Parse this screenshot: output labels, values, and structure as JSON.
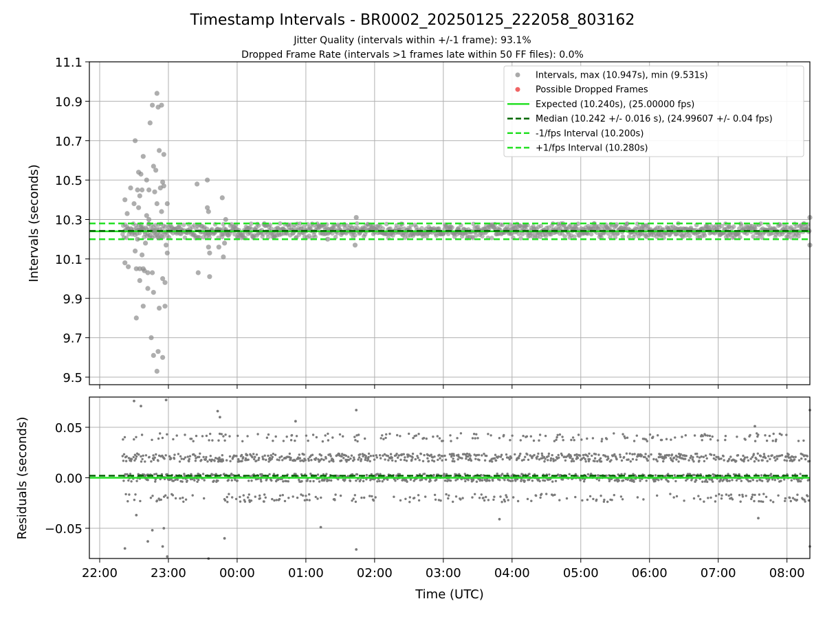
{
  "title": "Timestamp Intervals - BR0002_20250125_222058_803162",
  "subtitle_1": "Jitter Quality (intervals within +/-1 frame): 93.1%",
  "subtitle_2": "Dropped Frame Rate (intervals >1 frames late within 50 FF files): 0.0%",
  "chart_data": [
    {
      "type": "scatter",
      "panel": "intervals",
      "ylabel": "Intervals (seconds)",
      "xlabel": "",
      "ylim": [
        9.46,
        11.1
      ],
      "x_range": [
        "21:51",
        "08:20"
      ],
      "yticks": [
        9.5,
        9.7,
        9.9,
        10.1,
        10.3,
        10.5,
        10.7,
        10.9,
        11.1
      ],
      "ytick_labels": [
        "9.5",
        "9.7",
        "9.9",
        "10.1",
        "10.3",
        "10.5",
        "10.7",
        "10.9",
        "11.1"
      ],
      "grid": true,
      "legend_position": "top-right",
      "colors": {
        "intervals": "#8c8c8c",
        "dropped": "#f06464",
        "expected": "#22e022",
        "median": "#006400",
        "band": "#22e022"
      },
      "legend": [
        {
          "label": "Intervals, max (10.947s), min (9.531s)",
          "kind": "dot",
          "color": "#a9a9a9"
        },
        {
          "label": "Possible Dropped Frames",
          "kind": "dot",
          "color": "#f06464"
        },
        {
          "label": "Expected (10.240s), (25.00000 fps)",
          "kind": "solid",
          "color": "#22e022"
        },
        {
          "label": "Median (10.242 +/- 0.016 s), (24.99607 +/- 0.04 fps)",
          "kind": "dashed",
          "color": "#006400"
        },
        {
          "label": "-1/fps Interval (10.200s)",
          "kind": "dashed",
          "color": "#22e022"
        },
        {
          "label": "+1/fps Interval (10.280s)",
          "kind": "dashed",
          "color": "#22e022"
        }
      ],
      "reference_lines": {
        "expected": 10.24,
        "median": 10.242,
        "lower": 10.2,
        "upper": 10.28
      },
      "data_span": {
        "start": "22:20",
        "end": "08:20"
      },
      "outlier_points": [
        [
          "22:22",
          10.4
        ],
        [
          "22:22",
          10.08
        ],
        [
          "22:24",
          10.33
        ],
        [
          "22:25",
          10.06
        ],
        [
          "22:27",
          10.46
        ],
        [
          "22:30",
          10.38
        ],
        [
          "22:31",
          10.14
        ],
        [
          "22:31",
          10.7
        ],
        [
          "22:32",
          10.05
        ],
        [
          "22:32",
          9.8
        ],
        [
          "22:33",
          10.2
        ],
        [
          "22:33",
          10.45
        ],
        [
          "22:34",
          10.54
        ],
        [
          "22:34",
          10.36
        ],
        [
          "22:35",
          10.42
        ],
        [
          "22:35",
          10.05
        ],
        [
          "22:35",
          9.99
        ],
        [
          "22:36",
          10.26
        ],
        [
          "22:36",
          10.53
        ],
        [
          "22:37",
          10.45
        ],
        [
          "22:37",
          10.12
        ],
        [
          "22:38",
          10.62
        ],
        [
          "22:38",
          10.05
        ],
        [
          "22:38",
          9.86
        ],
        [
          "22:39",
          10.04
        ],
        [
          "22:40",
          10.18
        ],
        [
          "22:41",
          10.5
        ],
        [
          "22:41",
          10.32
        ],
        [
          "22:42",
          10.03
        ],
        [
          "22:42",
          9.95
        ],
        [
          "22:43",
          10.45
        ],
        [
          "22:43",
          10.3
        ],
        [
          "22:44",
          10.79
        ],
        [
          "22:44",
          10.22
        ],
        [
          "22:45",
          9.7
        ],
        [
          "22:46",
          10.88
        ],
        [
          "22:46",
          10.03
        ],
        [
          "22:47",
          10.57
        ],
        [
          "22:47",
          9.61
        ],
        [
          "22:47",
          9.93
        ],
        [
          "22:48",
          10.44
        ],
        [
          "22:48",
          10.24
        ],
        [
          "22:49",
          10.55
        ],
        [
          "22:50",
          10.94
        ],
        [
          "22:50",
          10.38
        ],
        [
          "22:50",
          9.53
        ],
        [
          "22:51",
          10.87
        ],
        [
          "22:51",
          10.21
        ],
        [
          "22:51",
          9.63
        ],
        [
          "22:52",
          10.65
        ],
        [
          "22:52",
          9.85
        ],
        [
          "22:53",
          10.46
        ],
        [
          "22:54",
          10.88
        ],
        [
          "22:54",
          10.34
        ],
        [
          "22:55",
          10.49
        ],
        [
          "22:55",
          10.0
        ],
        [
          "22:55",
          9.6
        ],
        [
          "22:56",
          10.63
        ],
        [
          "22:56",
          10.47
        ],
        [
          "22:57",
          9.98
        ],
        [
          "22:57",
          9.86
        ],
        [
          "22:58",
          10.17
        ],
        [
          "22:59",
          10.13
        ],
        [
          "22:59",
          10.38
        ],
        [
          "23:25",
          10.48
        ],
        [
          "23:26",
          10.03
        ],
        [
          "23:34",
          10.5
        ],
        [
          "23:34",
          10.36
        ],
        [
          "23:35",
          10.34
        ],
        [
          "23:35",
          10.16
        ],
        [
          "23:36",
          10.13
        ],
        [
          "23:36",
          10.01
        ],
        [
          "23:44",
          10.16
        ],
        [
          "23:47",
          10.41
        ],
        [
          "23:48",
          10.11
        ],
        [
          "23:49",
          10.18
        ],
        [
          "23:50",
          10.3
        ],
        [
          "01:19",
          10.2
        ],
        [
          "01:43",
          10.17
        ],
        [
          "01:44",
          10.31
        ],
        [
          "08:20",
          10.31
        ],
        [
          "08:20",
          10.17
        ]
      ]
    },
    {
      "type": "scatter",
      "panel": "residuals",
      "ylabel": "Residuals (seconds)",
      "xlabel": "Time (UTC)",
      "ylim": [
        -0.08,
        0.08
      ],
      "x_range": [
        "21:51",
        "08:20"
      ],
      "yticks": [
        -0.05,
        0.0,
        0.05
      ],
      "ytick_labels": [
        "−0.05",
        "0.00",
        "0.05"
      ],
      "xticks": [
        "22:00",
        "23:00",
        "00:00",
        "01:00",
        "02:00",
        "03:00",
        "04:00",
        "05:00",
        "06:00",
        "07:00",
        "08:00"
      ],
      "grid": true,
      "bands": [
        0.04,
        0.02,
        0.0,
        -0.02
      ],
      "reference_lines": {
        "zero": 0.0,
        "median_offset": 0.002
      },
      "outlier_points": [
        [
          "22:30",
          0.076
        ],
        [
          "22:36",
          0.071
        ],
        [
          "22:32",
          -0.037
        ],
        [
          "22:22",
          -0.07
        ],
        [
          "22:42",
          -0.063
        ],
        [
          "22:46",
          -0.052
        ],
        [
          "22:55",
          -0.068
        ],
        [
          "22:58",
          0.077
        ],
        [
          "22:59",
          -0.078
        ],
        [
          "22:56",
          -0.05
        ],
        [
          "23:35",
          -0.08
        ],
        [
          "23:43",
          0.066
        ],
        [
          "23:49",
          -0.06
        ],
        [
          "23:45",
          0.06
        ],
        [
          "00:51",
          0.056
        ],
        [
          "01:13",
          -0.049
        ],
        [
          "01:44",
          0.067
        ],
        [
          "01:44",
          -0.071
        ],
        [
          "03:49",
          -0.041
        ],
        [
          "07:32",
          0.051
        ],
        [
          "07:35",
          -0.04
        ],
        [
          "08:20",
          0.067
        ],
        [
          "08:20",
          -0.068
        ]
      ]
    }
  ]
}
